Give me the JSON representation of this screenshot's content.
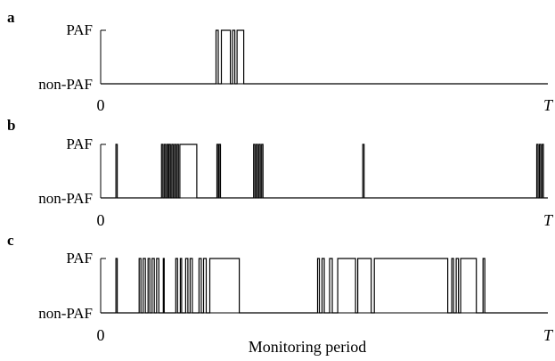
{
  "chart_data": [
    {
      "type": "line",
      "panel_label": "a",
      "y_categories": [
        "non-PAF",
        "PAF"
      ],
      "xlim": [
        "0",
        "T"
      ],
      "x_tick_labels": [
        "0",
        "T"
      ],
      "xlabel": "",
      "paf_intervals": [
        [
          0.258,
          0.263
        ],
        [
          0.27,
          0.29
        ],
        [
          0.295,
          0.3
        ],
        [
          0.305,
          0.32
        ]
      ]
    },
    {
      "type": "line",
      "panel_label": "b",
      "y_categories": [
        "non-PAF",
        "PAF"
      ],
      "xlim": [
        "0",
        "T"
      ],
      "x_tick_labels": [
        "0",
        "T"
      ],
      "xlabel": "",
      "paf_intervals": [
        [
          0.034,
          0.037
        ],
        [
          0.136,
          0.139
        ],
        [
          0.142,
          0.145
        ],
        [
          0.148,
          0.151
        ],
        [
          0.153,
          0.156
        ],
        [
          0.159,
          0.162
        ],
        [
          0.165,
          0.168
        ],
        [
          0.171,
          0.174
        ],
        [
          0.177,
          0.215
        ],
        [
          0.26,
          0.263
        ],
        [
          0.265,
          0.268
        ],
        [
          0.342,
          0.345
        ],
        [
          0.348,
          0.351
        ],
        [
          0.354,
          0.357
        ],
        [
          0.36,
          0.363
        ],
        [
          0.586,
          0.589
        ],
        [
          0.975,
          0.978
        ],
        [
          0.981,
          0.984
        ],
        [
          0.987,
          0.99
        ]
      ]
    },
    {
      "type": "line",
      "panel_label": "c",
      "y_categories": [
        "non-PAF",
        "PAF"
      ],
      "xlim": [
        "0",
        "T"
      ],
      "x_tick_labels": [
        "0",
        "T"
      ],
      "xlabel": "Monitoring period",
      "paf_intervals": [
        [
          0.034,
          0.037
        ],
        [
          0.086,
          0.09
        ],
        [
          0.095,
          0.1
        ],
        [
          0.106,
          0.11
        ],
        [
          0.115,
          0.12
        ],
        [
          0.125,
          0.13
        ],
        [
          0.14,
          0.142
        ],
        [
          0.168,
          0.172
        ],
        [
          0.178,
          0.181
        ],
        [
          0.19,
          0.195
        ],
        [
          0.2,
          0.205
        ],
        [
          0.22,
          0.225
        ],
        [
          0.23,
          0.236
        ],
        [
          0.244,
          0.31
        ],
        [
          0.485,
          0.489
        ],
        [
          0.495,
          0.5
        ],
        [
          0.512,
          0.518
        ],
        [
          0.53,
          0.57
        ],
        [
          0.575,
          0.605
        ],
        [
          0.612,
          0.776
        ],
        [
          0.785,
          0.789
        ],
        [
          0.795,
          0.8
        ],
        [
          0.805,
          0.84
        ],
        [
          0.855,
          0.859
        ]
      ]
    }
  ]
}
